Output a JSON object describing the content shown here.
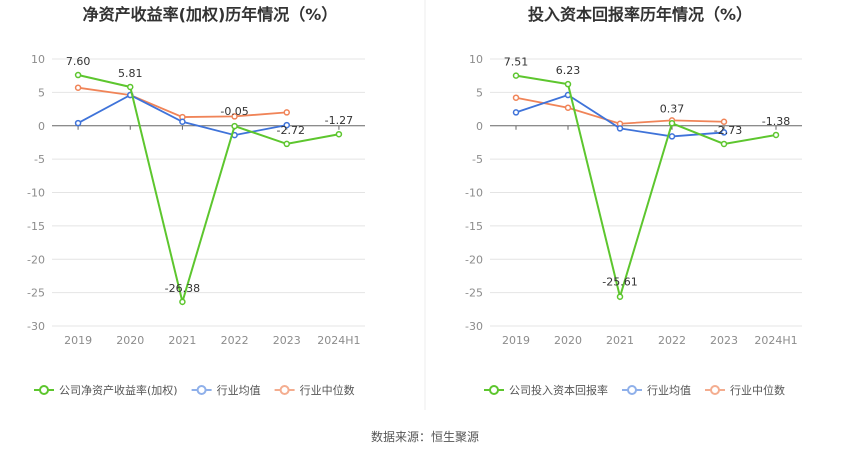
{
  "footer": {
    "source": "数据来源：恒生聚源"
  },
  "colors": {
    "company": "#5dc62e",
    "industry_avg": "#3f73d9",
    "industry_median": "#f08458",
    "grid": "#e4e4e4",
    "axis": "#666666",
    "tick_text": "#8c8c8c",
    "title": "#333333"
  },
  "chart_data": [
    {
      "type": "line",
      "title": "净资产收益率(加权)历年情况（%）",
      "categories": [
        "2019",
        "2020",
        "2021",
        "2022",
        "2023",
        "2024H1"
      ],
      "ylim": [
        -30,
        10
      ],
      "yticks": [
        10,
        5,
        0,
        -5,
        -10,
        -15,
        -20,
        -25,
        -30
      ],
      "series": [
        {
          "name": "公司净资产收益率(加权)",
          "values": [
            7.6,
            5.81,
            -26.38,
            -0.05,
            -2.72,
            -1.27
          ],
          "labels": [
            "7.60",
            "5.81",
            "-26.38",
            "-0.05",
            "-2.72",
            "-1.27"
          ]
        },
        {
          "name": "行业均值",
          "values": [
            0.4,
            4.6,
            0.6,
            -1.4,
            0.1,
            null
          ]
        },
        {
          "name": "行业中位数",
          "values": [
            5.7,
            4.6,
            1.3,
            1.4,
            2.0,
            null
          ]
        }
      ]
    },
    {
      "type": "line",
      "title": "投入资本回报率历年情况（%）",
      "categories": [
        "2019",
        "2020",
        "2021",
        "2022",
        "2023",
        "2024H1"
      ],
      "ylim": [
        -30,
        10
      ],
      "yticks": [
        10,
        5,
        0,
        -5,
        -10,
        -15,
        -20,
        -25,
        -30
      ],
      "series": [
        {
          "name": "公司投入资本回报率",
          "values": [
            7.51,
            6.23,
            -25.61,
            0.37,
            -2.73,
            -1.38
          ],
          "labels": [
            "7.51",
            "6.23",
            "-25.61",
            "0.37",
            "-2.73",
            "-1.38"
          ]
        },
        {
          "name": "行业均值",
          "values": [
            2.0,
            4.6,
            -0.4,
            -1.6,
            -1.0,
            null
          ]
        },
        {
          "name": "行业中位数",
          "values": [
            4.2,
            2.7,
            0.3,
            0.8,
            0.6,
            null
          ]
        }
      ]
    }
  ]
}
